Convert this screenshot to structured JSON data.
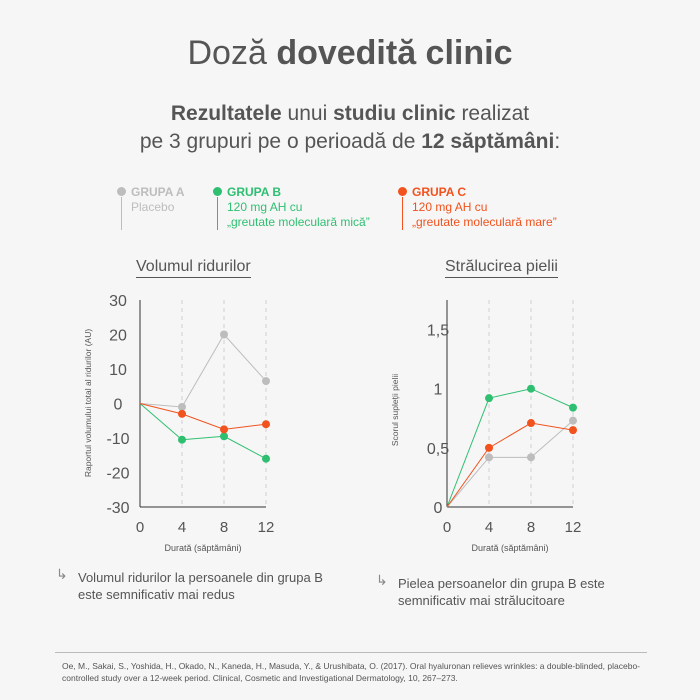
{
  "header": {
    "title_regular": "Doză",
    "title_bold": "dovedită clinic",
    "subtitle_parts": [
      "Rezultatele",
      " unui ",
      "studiu clinic",
      " realizat",
      "pe 3 grupuri pe o perioadă de ",
      "12 săptămâni",
      ":"
    ]
  },
  "legend": [
    {
      "head": "GRUPA A",
      "line1": "Placebo",
      "line2": "",
      "color": "#bdbdbd"
    },
    {
      "head": "GRUPA B",
      "line1": "120 mg AH cu",
      "line2": "„greutate moleculară mică”",
      "color": "#2fbf71"
    },
    {
      "head": "GRUPA C",
      "line1": "120 mg AH cu",
      "line2": "„greutate moleculară mare”",
      "color": "#f2521d"
    }
  ],
  "colors": {
    "grupa_a": "#bdbdbd",
    "grupa_b": "#2fbf71",
    "grupa_c": "#f2521d",
    "axis": "#333333"
  },
  "chart_data": [
    {
      "type": "line",
      "title": "Volumul ridurilor",
      "xlabel": "Durată (săptămâni)",
      "ylabel": "Raportul volumului total al ridurilor (AU)",
      "x": [
        0,
        4,
        8,
        12
      ],
      "xlim": [
        0,
        12
      ],
      "ylim": [
        -30,
        30
      ],
      "yticks": [
        "30",
        "20",
        "10",
        "0",
        "-10",
        "-20",
        "-30"
      ],
      "xticks": [
        "0",
        "4",
        "8",
        "12"
      ],
      "grid": "vertical dashed",
      "series": [
        {
          "name": "GRUPA A",
          "values": [
            0,
            -1,
            20,
            6.5
          ]
        },
        {
          "name": "GRUPA B",
          "values": [
            0,
            -10.5,
            -9.5,
            -16
          ]
        },
        {
          "name": "GRUPA C",
          "values": [
            0,
            -3,
            -7.5,
            -6
          ]
        }
      ]
    },
    {
      "type": "line",
      "title": "Strălucirea pielii",
      "xlabel": "Durată (săptămâni)",
      "ylabel": "Scorul supleții pielii",
      "x": [
        0,
        4,
        8,
        12
      ],
      "xlim": [
        0,
        12
      ],
      "ylim": [
        0,
        1.75
      ],
      "yticks": [
        "1,5",
        "1",
        "0,5",
        "0"
      ],
      "xticks": [
        "0",
        "4",
        "8",
        "12"
      ],
      "grid": "vertical dashed",
      "series": [
        {
          "name": "GRUPA A",
          "values": [
            0,
            0.42,
            0.42,
            0.73
          ]
        },
        {
          "name": "GRUPA B",
          "values": [
            0,
            0.92,
            1.0,
            0.84
          ]
        },
        {
          "name": "GRUPA C",
          "values": [
            0,
            0.5,
            0.71,
            0.65
          ]
        }
      ]
    }
  ],
  "notes": [
    "Volumul ridurilor la persoanele din grupa B este semnificativ mai redus",
    "Pielea persoanelor din grupa B este semnificativ mai strălucitoare"
  ],
  "citation": "Oe, M., Sakai, S., Yoshida, H., Okado, N., Kaneda, H., Masuda, Y., & Urushibata, O. (2017). Oral hyaluronan relieves wrinkles: a double-blinded, placebo-controlled study over a 12-week period. Clinical, Cosmetic and Investigational Dermatology, 10, 267–273."
}
